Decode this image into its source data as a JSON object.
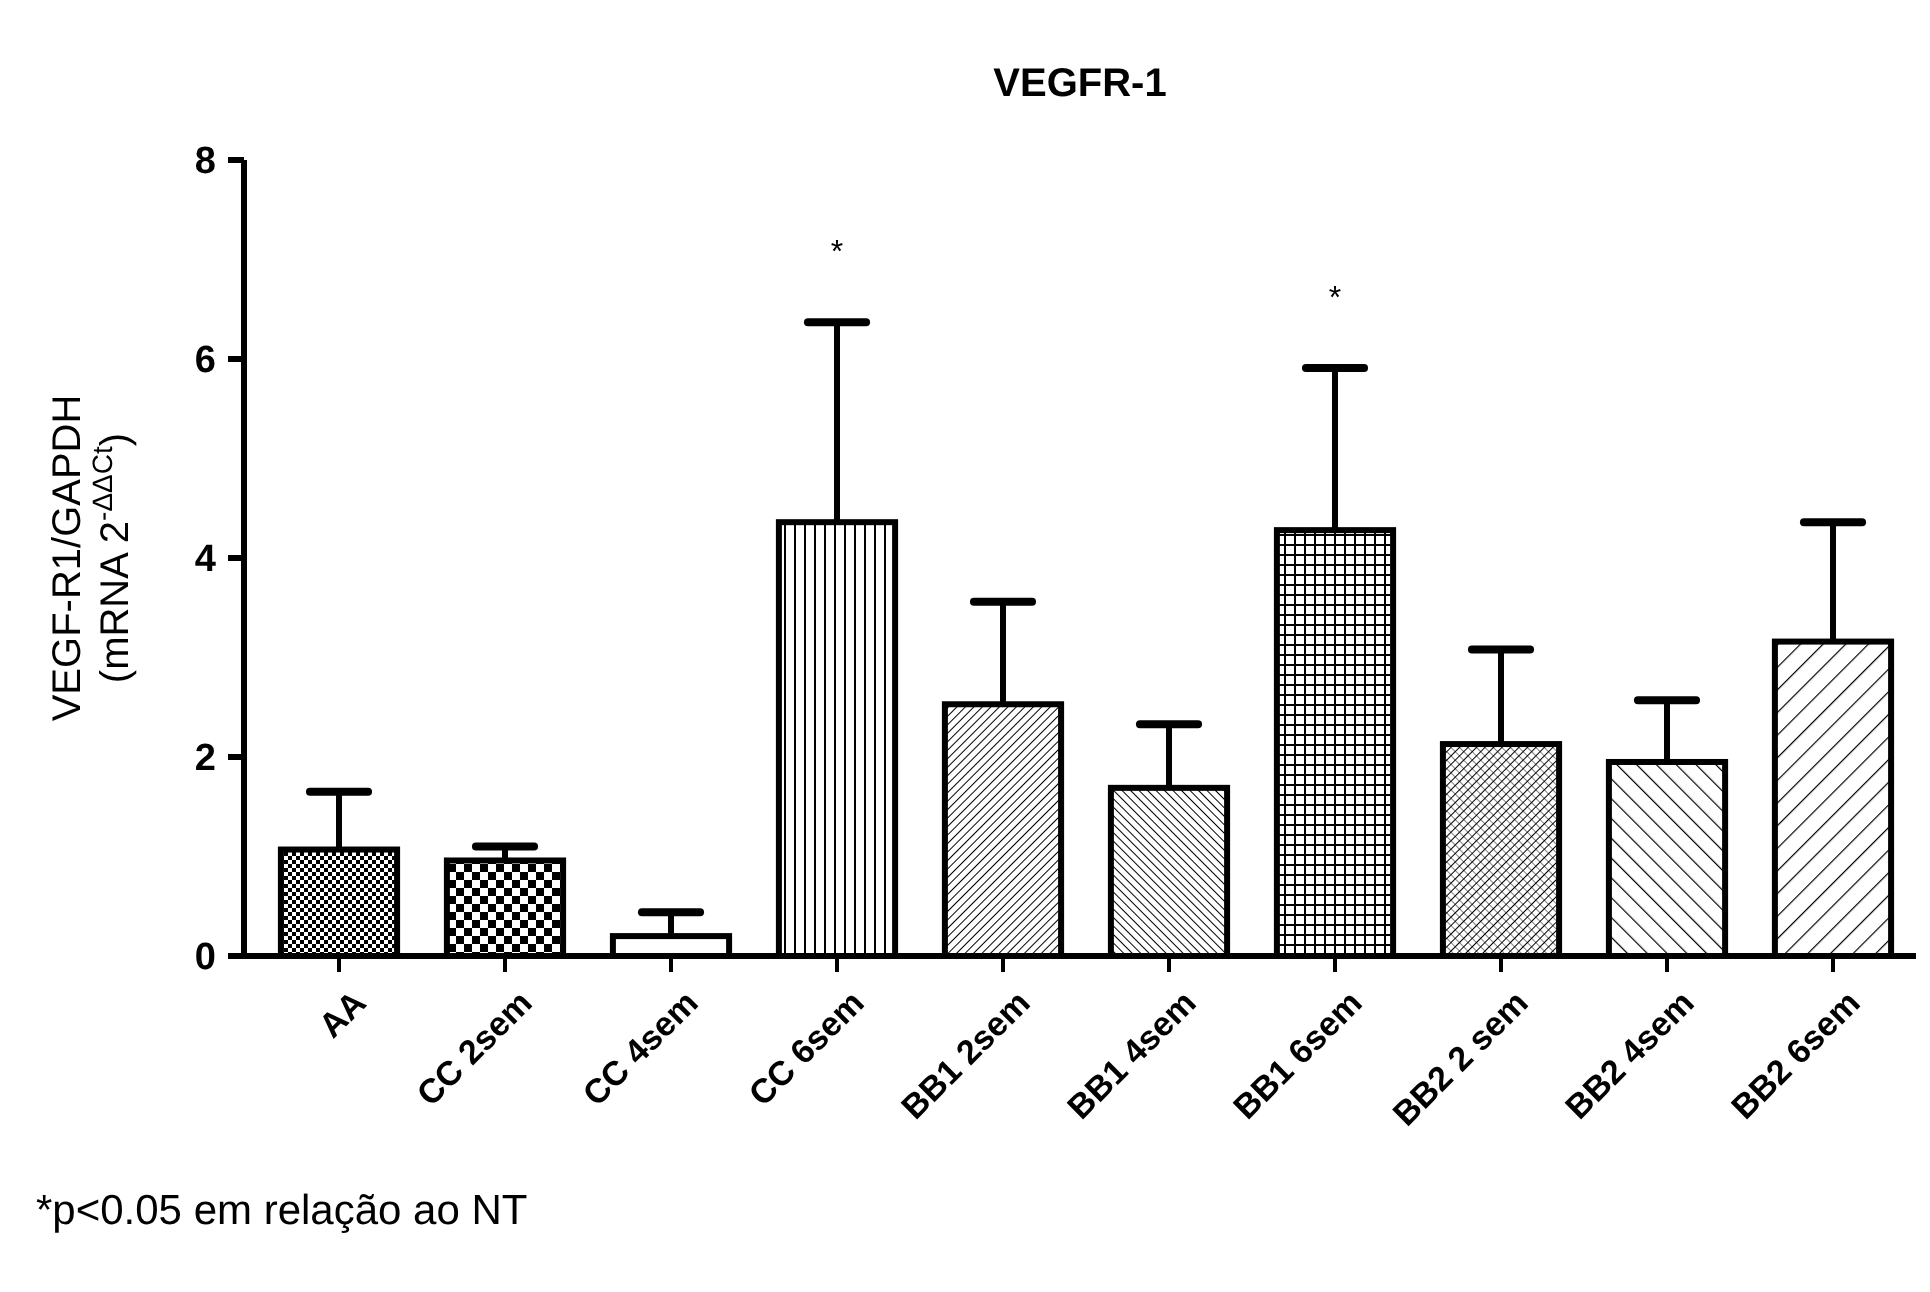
{
  "chart_data": {
    "type": "bar",
    "title": "VEGFR-1",
    "ylabel": "VEGF-R1/GAPDH\n(mRNA 2$^{-ΔΔCt}$)",
    "categories": [
      "AA",
      "CC 2sem",
      "CC 4sem",
      "CC 6sem",
      "BB1 2sem",
      "BB1 4sem",
      "BB1 6sem",
      "BB2 2 sem",
      "BB2 4sem",
      "BB2 6sem"
    ],
    "values": [
      1.07,
      0.96,
      0.2,
      4.36,
      2.53,
      1.69,
      4.28,
      2.13,
      1.95,
      3.16
    ],
    "errors": [
      [
        1.07,
        1.65
      ],
      [
        0.96,
        1.1
      ],
      [
        0.2,
        0.44
      ],
      [
        4.36,
        6.37
      ],
      [
        2.53,
        3.56
      ],
      [
        1.69,
        2.33
      ],
      [
        4.28,
        5.91
      ],
      [
        2.13,
        3.08
      ],
      [
        1.95,
        2.57
      ],
      [
        3.16,
        4.36
      ]
    ],
    "color": "#000000",
    "ylim": [
      0,
      8
    ],
    "yticks": [
      0,
      2,
      4,
      6,
      8
    ],
    "grid": false,
    "annotations": [
      {
        "text": "*",
        "x": "CC 6sem",
        "y": 6.37
      },
      {
        "text": "*",
        "x": "BB1 6sem",
        "y": 5.91
      },
      "*p<0.05 em relação ao NT"
    ]
  }
}
